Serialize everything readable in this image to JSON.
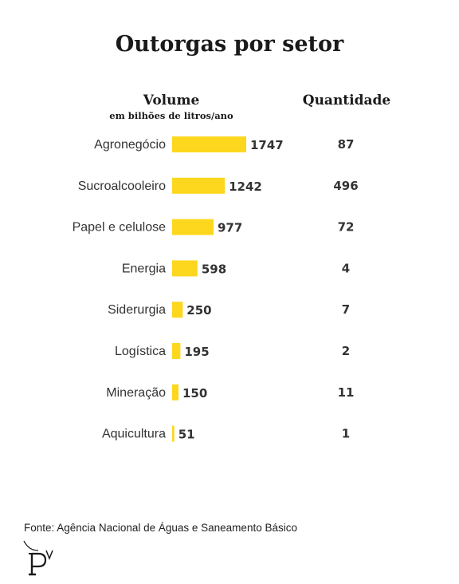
{
  "title": "Outorgas por setor",
  "headers": {
    "volume": "Volume",
    "volume_unit": "em bilhões de litros/ano",
    "quantity": "Quantidade"
  },
  "source": "Fonte: Agência Nacional de Águas e Saneamento Básico",
  "colors": {
    "bar": "#FCD71E",
    "text": "#333333"
  },
  "chart_data": {
    "type": "bar",
    "orientation": "horizontal",
    "categories": [
      "Agronegócio",
      "Sucroalcooleiro",
      "Papel e celulose",
      "Energia",
      "Siderurgia",
      "Logística",
      "Mineração",
      "Aquicultura"
    ],
    "series": [
      {
        "name": "Volume",
        "values": [
          1747,
          1242,
          977,
          598,
          250,
          195,
          150,
          51
        ]
      },
      {
        "name": "Quantidade",
        "values": [
          87,
          496,
          72,
          4,
          7,
          2,
          11,
          1
        ]
      }
    ],
    "xlim": [
      0,
      1747
    ],
    "grid": false,
    "legend": "none"
  }
}
